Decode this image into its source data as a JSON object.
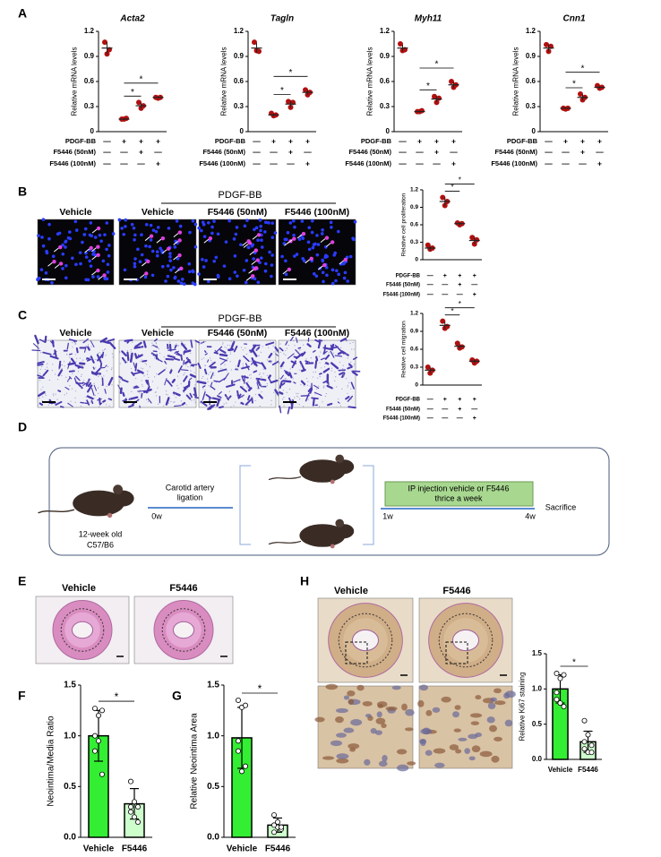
{
  "figure": {
    "panels": [
      "A",
      "B",
      "C",
      "D",
      "E",
      "F",
      "G",
      "H"
    ]
  },
  "images": {
    "B": {
      "group": "PDGF-BB",
      "labels": [
        "Vehicle",
        "Vehicle",
        "F5446 (50nM)",
        "F5446 (100nM)"
      ]
    },
    "C": {
      "group": "PDGF-BB",
      "labels": [
        "Vehicle",
        "Vehicle",
        "F5446 (50nM)",
        "F5446 (100nM)"
      ]
    },
    "E": {
      "labels": [
        "Vehicle",
        "F5446"
      ]
    },
    "H": {
      "labels": [
        "Vehicle",
        "F5446"
      ]
    }
  },
  "diagram": {
    "mouse": [
      "12-week old",
      "C57/B6"
    ],
    "surgery": [
      "Carotid artery",
      "ligation"
    ],
    "treatment": [
      "IP injection vehicle or F5446",
      "thrice a week"
    ],
    "timepoints": [
      "0w",
      "1w",
      "4w"
    ],
    "end": "Sacrifice"
  },
  "chart_data": [
    {
      "type": "dot",
      "title": "Acta2",
      "y_label": "Relative mRNA levels",
      "ylim": [
        0,
        1.2
      ],
      "yticks": [
        0,
        0.3,
        0.6,
        0.9,
        1.2
      ],
      "color": "#b01010",
      "means": [
        1.0,
        0.15,
        0.31,
        0.41
      ],
      "errors": [
        0.07,
        0.01,
        0.035,
        0.01
      ],
      "points": [
        [
          1.07,
          0.93,
          0.98
        ],
        [
          0.15,
          0.15,
          0.16
        ],
        [
          0.35,
          0.28,
          0.31
        ],
        [
          0.41,
          0.4,
          0.41
        ]
      ],
      "annotations": [
        "*",
        "*"
      ],
      "conditions": {
        "labels": [
          "PDGF-BB",
          "F5446 (50nM)",
          "F5446 (100nM)"
        ],
        "rows": [
          [
            "—",
            "+",
            "+",
            "+"
          ],
          [
            "—",
            "—",
            "+",
            "—"
          ],
          [
            "—",
            "—",
            "—",
            "+"
          ]
        ]
      }
    },
    {
      "type": "dot",
      "title": "Tagln",
      "y_label": "Relative mRNA levels",
      "ylim": [
        0,
        1.2
      ],
      "yticks": [
        0,
        0.3,
        0.6,
        0.9,
        1.2
      ],
      "color": "#b01010",
      "means": [
        1.0,
        0.2,
        0.33,
        0.47
      ],
      "errors": [
        0.06,
        0.015,
        0.04,
        0.03
      ],
      "points": [
        [
          1.07,
          0.97,
          0.96
        ],
        [
          0.22,
          0.19,
          0.2
        ],
        [
          0.36,
          0.29,
          0.35
        ],
        [
          0.5,
          0.44,
          0.47
        ]
      ],
      "annotations": [
        "*",
        "*"
      ],
      "conditions": {
        "labels": [
          "PDGF-BB",
          "F5446 (50nM)",
          "F5446 (100nM)"
        ],
        "rows": [
          [
            "—",
            "+",
            "+",
            "+"
          ],
          [
            "—",
            "—",
            "+",
            "—"
          ],
          [
            "—",
            "—",
            "—",
            "+"
          ]
        ]
      }
    },
    {
      "type": "dot",
      "title": "Myh11",
      "y_label": "Relative mRNA levels",
      "ylim": [
        0,
        1.2
      ],
      "yticks": [
        0,
        0.3,
        0.6,
        0.9,
        1.2
      ],
      "color": "#b01010",
      "means": [
        1.0,
        0.24,
        0.39,
        0.56
      ],
      "errors": [
        0.04,
        0.01,
        0.035,
        0.035
      ],
      "points": [
        [
          1.05,
          0.97,
          0.98
        ],
        [
          0.24,
          0.24,
          0.25
        ],
        [
          0.42,
          0.35,
          0.4
        ],
        [
          0.6,
          0.53,
          0.56
        ]
      ],
      "annotations": [
        "*",
        "*"
      ],
      "conditions": {
        "labels": [
          "PDGF-BB",
          "F5446 (50nM)",
          "F5446 (100nM)"
        ],
        "rows": [
          [
            "—",
            "+",
            "+",
            "+"
          ],
          [
            "—",
            "—",
            "+",
            "—"
          ],
          [
            "—",
            "—",
            "—",
            "+"
          ]
        ]
      }
    },
    {
      "type": "dot",
      "title": "Cnn1",
      "y_label": "Relative mRNA levels",
      "ylim": [
        0,
        1.2
      ],
      "yticks": [
        0,
        0.3,
        0.6,
        0.9,
        1.2
      ],
      "color": "#b01010",
      "means": [
        1.0,
        0.28,
        0.41,
        0.53
      ],
      "errors": [
        0.04,
        0.005,
        0.035,
        0.015
      ],
      "points": [
        [
          1.04,
          0.96,
          1.02
        ],
        [
          0.28,
          0.27,
          0.28
        ],
        [
          0.45,
          0.38,
          0.41
        ],
        [
          0.55,
          0.52,
          0.53
        ]
      ],
      "annotations": [
        "*",
        "*"
      ],
      "conditions": {
        "labels": [
          "PDGF-BB",
          "F5446 (50nM)",
          "F5446 (100nM)"
        ],
        "rows": [
          [
            "—",
            "+",
            "+",
            "+"
          ],
          [
            "—",
            "—",
            "+",
            "—"
          ],
          [
            "—",
            "—",
            "—",
            "+"
          ]
        ]
      }
    },
    {
      "type": "dot",
      "y_label": "Relative cell proliferation",
      "ylim": [
        0,
        1.2
      ],
      "yticks": [
        0,
        0.3,
        0.6,
        0.9,
        1.2
      ],
      "color": "#b01010",
      "means": [
        0.2,
        1.0,
        0.62,
        0.33
      ],
      "errors": [
        0.04,
        0.07,
        0.03,
        0.06
      ],
      "points": [
        [
          0.25,
          0.18,
          0.2
        ],
        [
          1.07,
          0.93,
          1.0
        ],
        [
          0.63,
          0.6,
          0.62
        ],
        [
          0.38,
          0.27,
          0.34
        ]
      ],
      "annotations": [
        "*",
        "*"
      ],
      "conditions": {
        "labels": [
          "PDGF-BB",
          "F5446 (50nM)",
          "F5446 (100nM)"
        ],
        "rows": [
          [
            "—",
            "+",
            "+",
            "+"
          ],
          [
            "—",
            "—",
            "+",
            "—"
          ],
          [
            "—",
            "—",
            "—",
            "+"
          ]
        ]
      }
    },
    {
      "type": "dot",
      "y_label": "Relative cell migration",
      "ylim": [
        0,
        1.2
      ],
      "yticks": [
        0,
        0.3,
        0.6,
        0.9,
        1.2
      ],
      "color": "#b01010",
      "means": [
        0.25,
        1.0,
        0.65,
        0.4
      ],
      "errors": [
        0.05,
        0.06,
        0.04,
        0.03
      ],
      "points": [
        [
          0.3,
          0.2,
          0.25
        ],
        [
          1.07,
          0.95,
          0.98
        ],
        [
          0.7,
          0.62,
          0.64
        ],
        [
          0.42,
          0.37,
          0.4
        ]
      ],
      "annotations": [
        "*",
        "*"
      ],
      "conditions": {
        "labels": [
          "PDGF-BB",
          "F5446 (50nM)",
          "F5446 (100nM)"
        ],
        "rows": [
          [
            "—",
            "+",
            "+",
            "+"
          ],
          [
            "—",
            "—",
            "+",
            "—"
          ],
          [
            "—",
            "—",
            "—",
            "+"
          ]
        ]
      }
    },
    {
      "type": "bar",
      "y_label": "Neointima/Media Ratio",
      "ylim": [
        0,
        1.5
      ],
      "yticks": [
        {
          "value": 0,
          "label": "0.0"
        },
        0.5,
        {
          "value": 1,
          "label": "1.0"
        },
        1.5
      ],
      "categories": [
        "Vehicle",
        "F5446"
      ],
      "colors": [
        "#33ee33",
        "#ccffcc"
      ],
      "means": [
        1.0,
        0.33
      ],
      "errors": [
        0.25,
        0.15
      ],
      "points": [
        [
          1.27,
          1.2,
          1.25,
          1.0,
          0.95,
          0.62,
          0.85
        ],
        [
          0.55,
          0.35,
          0.3,
          0.25,
          0.2,
          0.15,
          0.3
        ]
      ],
      "annotations": [
        "*"
      ]
    },
    {
      "type": "bar",
      "y_label": "Relative Neointima Area",
      "ylim": [
        0,
        1.5
      ],
      "yticks": [
        {
          "value": 0,
          "label": "0.0"
        },
        0.5,
        {
          "value": 1,
          "label": "1.0"
        },
        1.5
      ],
      "categories": [
        "Vehicle",
        "F5446"
      ],
      "colors": [
        "#33ee33",
        "#ccffcc"
      ],
      "means": [
        0.98,
        0.12
      ],
      "errors": [
        0.3,
        0.07
      ],
      "points": [
        [
          1.35,
          1.28,
          1.3,
          0.85,
          0.65,
          0.7,
          0.95
        ],
        [
          0.22,
          0.1,
          0.08,
          0.05,
          0.15,
          0.1,
          0.12
        ]
      ],
      "annotations": [
        "*"
      ]
    },
    {
      "type": "bar",
      "y_label": "Relative Ki67 staining",
      "ylim": [
        0,
        1.5
      ],
      "yticks": [
        {
          "value": 0,
          "label": "0.0"
        },
        0.5,
        {
          "value": 1,
          "label": "1.0"
        },
        1.5
      ],
      "categories": [
        "Vehicle",
        "F5446"
      ],
      "colors": [
        "#33ee33",
        "#ccffcc"
      ],
      "means": [
        1.0,
        0.25
      ],
      "errors": [
        0.2,
        0.15
      ],
      "points": [
        [
          1.22,
          1.15,
          1.2,
          0.95,
          0.8,
          0.75,
          0.85
        ],
        [
          0.55,
          0.35,
          0.2,
          0.15,
          0.1,
          0.1,
          0.25
        ]
      ],
      "annotations": [
        "*"
      ]
    }
  ]
}
